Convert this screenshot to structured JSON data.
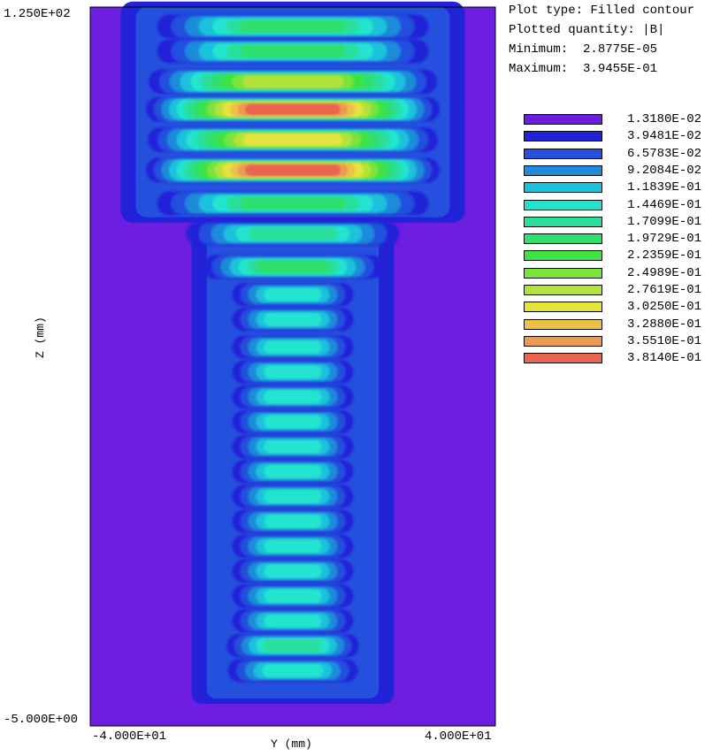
{
  "info": {
    "plot_type": "Plot type: Filled contour",
    "plotted_quantity": "Plotted quantity: |B|",
    "minimum": "Minimum:  2.8775E-05",
    "maximum": "Maximum:  3.9455E-01"
  },
  "chart_data": {
    "type": "heatmap",
    "quantity": "|B|",
    "xlabel": "Y (mm)",
    "ylabel": "Z (mm)",
    "xlim": [
      -40,
      40
    ],
    "ylim": [
      -5,
      125
    ],
    "x_tick_labels": [
      "-4.000E+01",
      "4.000E+01"
    ],
    "y_tick_labels": [
      "1.250E+02",
      "-5.000E+00"
    ],
    "min": 2.8775e-05,
    "max": 0.39455,
    "legend": [
      {
        "label": "1.3180E-02",
        "color": "#6c1de0"
      },
      {
        "label": "3.9481E-02",
        "color": "#2223d9"
      },
      {
        "label": "6.5783E-02",
        "color": "#2450dd"
      },
      {
        "label": "9.2084E-02",
        "color": "#1f8bd9"
      },
      {
        "label": "1.1839E-01",
        "color": "#1ec1dc"
      },
      {
        "label": "1.4469E-01",
        "color": "#21e4cf"
      },
      {
        "label": "1.7099E-01",
        "color": "#2bdf9c"
      },
      {
        "label": "1.9729E-01",
        "color": "#2fdf6e"
      },
      {
        "label": "2.2359E-01",
        "color": "#3ee342"
      },
      {
        "label": "2.4989E-01",
        "color": "#7ae33c"
      },
      {
        "label": "2.7619E-01",
        "color": "#b3e33a"
      },
      {
        "label": "3.0250E-01",
        "color": "#e4e43c"
      },
      {
        "label": "3.2880E-01",
        "color": "#ecc246"
      },
      {
        "label": "3.5510E-01",
        "color": "#ec9a52"
      },
      {
        "label": "3.8140E-01",
        "color": "#e96550"
      }
    ],
    "bands": [
      {
        "z": 121.5,
        "y_half": 28,
        "peak": 0.2
      },
      {
        "z": 117.0,
        "y_half": 28,
        "peak": 0.21
      },
      {
        "z": 111.5,
        "y_half": 29,
        "peak": 0.27
      },
      {
        "z": 106.5,
        "y_half": 29,
        "peak": 0.38
      },
      {
        "z": 101.0,
        "y_half": 29,
        "peak": 0.3
      },
      {
        "z": 95.5,
        "y_half": 29,
        "peak": 0.39
      },
      {
        "z": 89.5,
        "y_half": 28,
        "peak": 0.2
      },
      {
        "z": 84.0,
        "y_half": 22,
        "peak": 0.16
      },
      {
        "z": 78.0,
        "y_half": 18,
        "peak": 0.2
      },
      {
        "z": 73.0,
        "y_half": 12,
        "peak": 0.15
      },
      {
        "z": 68.5,
        "y_half": 12,
        "peak": 0.14
      },
      {
        "z": 63.5,
        "y_half": 12,
        "peak": 0.14
      },
      {
        "z": 59.0,
        "y_half": 12,
        "peak": 0.14
      },
      {
        "z": 54.5,
        "y_half": 12,
        "peak": 0.14
      },
      {
        "z": 50.0,
        "y_half": 12,
        "peak": 0.14
      },
      {
        "z": 45.5,
        "y_half": 12,
        "peak": 0.14
      },
      {
        "z": 41.0,
        "y_half": 12,
        "peak": 0.14
      },
      {
        "z": 36.5,
        "y_half": 12,
        "peak": 0.14
      },
      {
        "z": 32.0,
        "y_half": 12,
        "peak": 0.14
      },
      {
        "z": 27.5,
        "y_half": 12,
        "peak": 0.14
      },
      {
        "z": 23.0,
        "y_half": 12,
        "peak": 0.14
      },
      {
        "z": 18.5,
        "y_half": 12,
        "peak": 0.14
      },
      {
        "z": 14.0,
        "y_half": 12,
        "peak": 0.14
      },
      {
        "z": 9.5,
        "y_half": 13,
        "peak": 0.16
      },
      {
        "z": 5.0,
        "y_half": 13,
        "peak": 0.14
      }
    ]
  }
}
